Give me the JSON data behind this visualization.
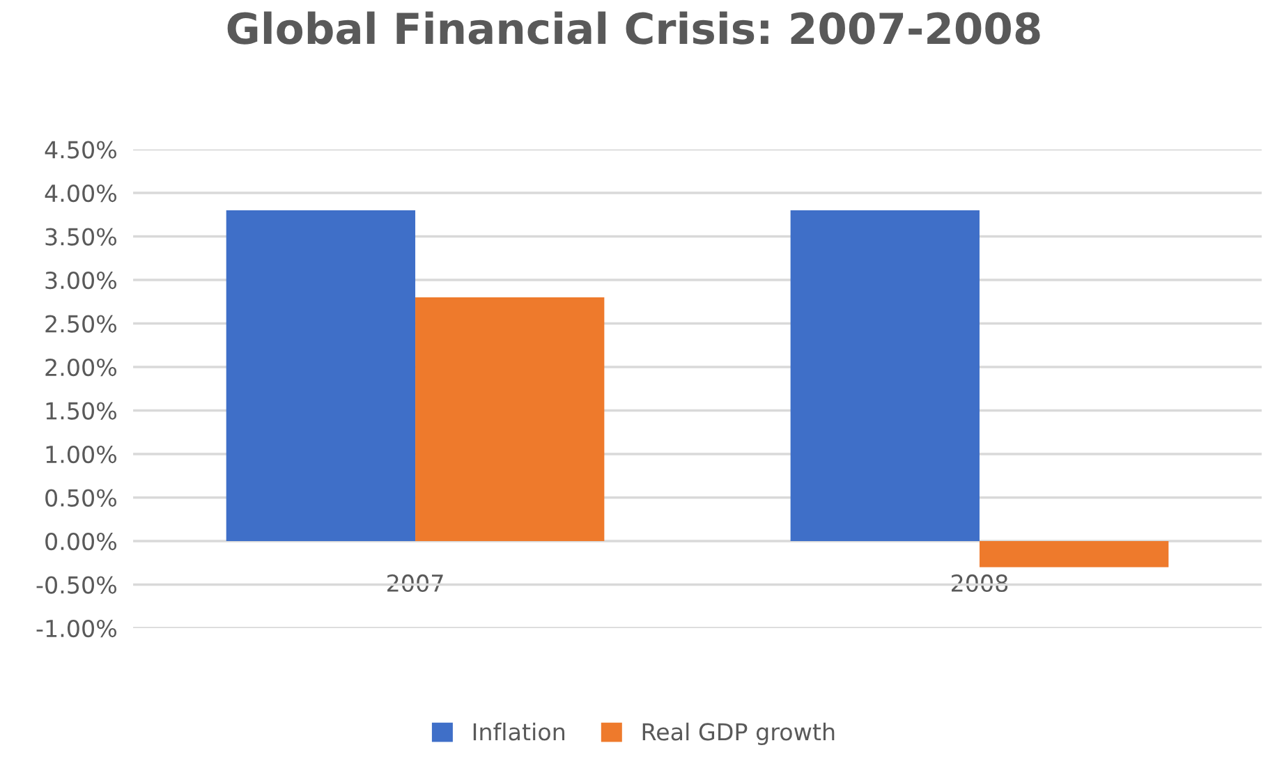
{
  "chart_data": {
    "type": "bar",
    "title": "Global Financial Crisis: 2007-2008",
    "categories": [
      "2007",
      "2008"
    ],
    "series": [
      {
        "name": "Inflation",
        "color": "#3f6fc8",
        "values": [
          3.8,
          3.8
        ]
      },
      {
        "name": "Real GDP growth",
        "color": "#ee7a2c",
        "values": [
          2.8,
          -0.3
        ]
      }
    ],
    "ylim": [
      -1,
      4.5
    ],
    "yticks": [
      {
        "value": -1,
        "label": "-1.00%"
      },
      {
        "value": -0.5,
        "label": "-0.50%"
      },
      {
        "value": 0,
        "label": "0.00%"
      },
      {
        "value": 0.5,
        "label": "0.50%"
      },
      {
        "value": 1,
        "label": "1.00%"
      },
      {
        "value": 1.5,
        "label": "1.50%"
      },
      {
        "value": 2,
        "label": "2.00%"
      },
      {
        "value": 2.5,
        "label": "2.50%"
      },
      {
        "value": 3,
        "label": "3.00%"
      },
      {
        "value": 3.5,
        "label": "3.50%"
      },
      {
        "value": 4,
        "label": "4.00%"
      },
      {
        "value": 4.5,
        "label": "4.50%"
      }
    ],
    "grid": "y",
    "legend": "bottom"
  }
}
